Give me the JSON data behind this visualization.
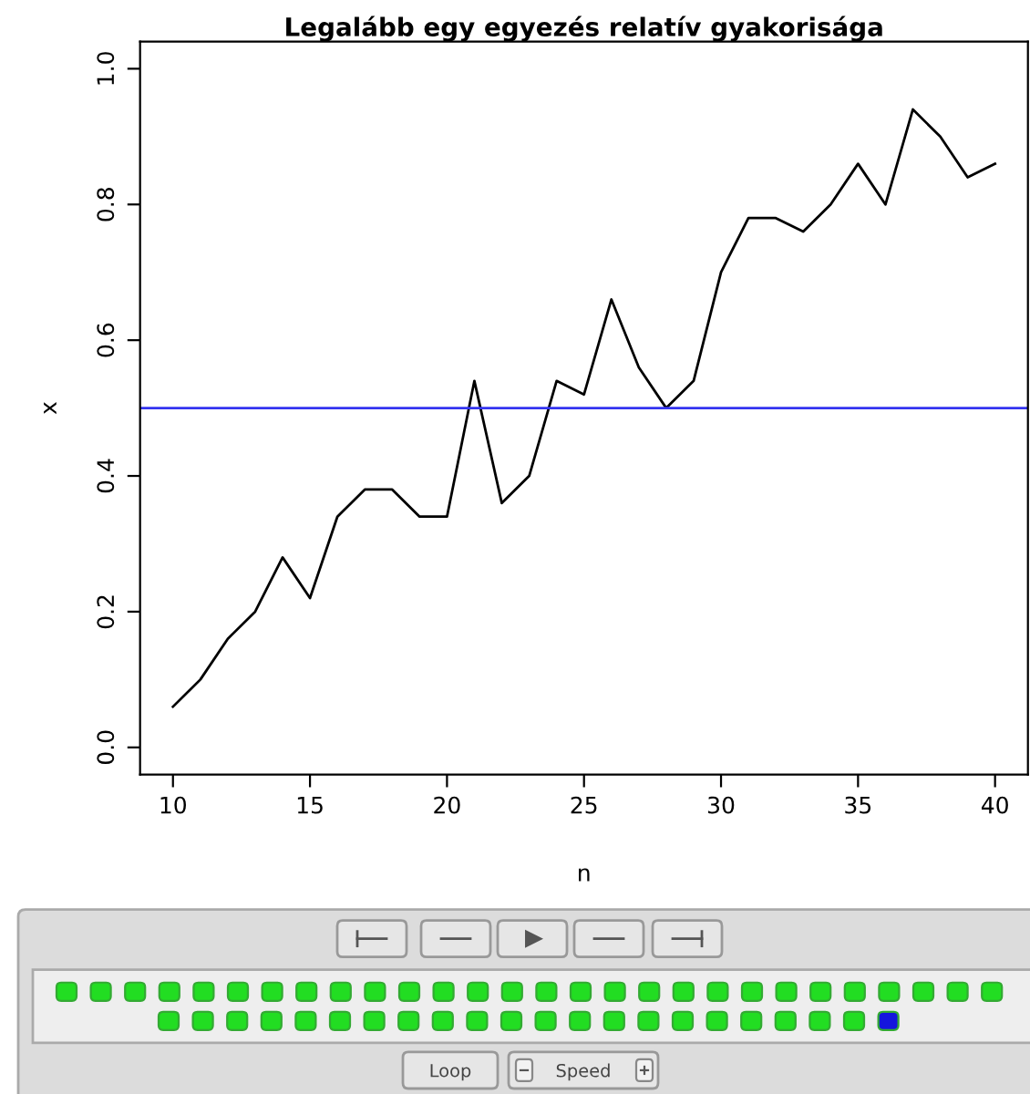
{
  "chart_data": [
    {
      "type": "line",
      "title": "Legalább egy egyezés relatív gyakorisága",
      "xlabel": "n",
      "ylabel": "x",
      "x": [
        10,
        11,
        12,
        13,
        14,
        15,
        16,
        17,
        18,
        19,
        20,
        21,
        22,
        23,
        24,
        25,
        26,
        27,
        28,
        29,
        30,
        31,
        32,
        33,
        34,
        35,
        36,
        37,
        38,
        39,
        40
      ],
      "series": [
        {
          "color": "#000000",
          "values": [
            0.06,
            0.1,
            0.16,
            0.2,
            0.28,
            0.22,
            0.34,
            0.38,
            0.38,
            0.34,
            0.34,
            0.54,
            0.36,
            0.4,
            0.54,
            0.52,
            0.66,
            0.56,
            0.5,
            0.54,
            0.7,
            0.78,
            0.78,
            0.76,
            0.8,
            0.86,
            0.8,
            0.94,
            0.9,
            0.84,
            0.86
          ]
        }
      ],
      "xlim": [
        8.8,
        41.2
      ],
      "ylim": [
        -0.04,
        1.04
      ],
      "xticks": [
        10,
        15,
        20,
        25,
        30,
        35,
        40
      ],
      "yticks": [
        {
          "value": 0,
          "label": "0.0"
        },
        0.2,
        0.4,
        0.6,
        0.8,
        {
          "value": 1,
          "label": "1.0"
        }
      ],
      "ref_lines": [
        {
          "axis": "y",
          "value": 0.5,
          "color": "#3434f0"
        }
      ],
      "marker": "none",
      "line_style": "solid"
    },
    {
      "type": "other",
      "annotations": [
        "Loop",
        "Speed"
      ]
    }
  ]
}
